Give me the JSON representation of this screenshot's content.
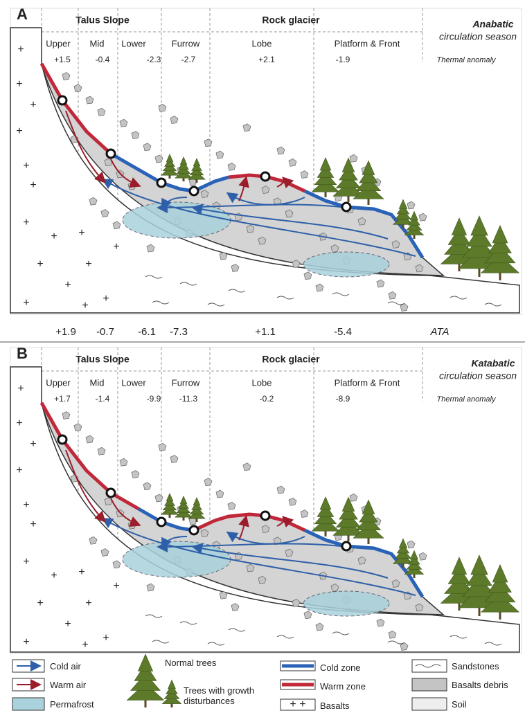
{
  "panels": [
    {
      "label": "A",
      "groups": [
        "Talus Slope",
        "Rock glacier"
      ],
      "zones": [
        "Upper",
        "Mid",
        "Lower",
        "Furrow",
        "Lobe",
        "Platform & Front"
      ],
      "season": "Anabatic",
      "season_rest": "circulation season",
      "anomaly_title": "Thermal anomaly",
      "anomalies": [
        "+1.5",
        "-0.4",
        "-2.3",
        "-2.7",
        "+2.1",
        "-1.9"
      ]
    },
    {
      "label": "B",
      "groups": [
        "Talus Slope",
        "Rock glacier"
      ],
      "zones": [
        "Upper",
        "Mid",
        "Lower",
        "Furrow",
        "Lobe",
        "Platform & Front"
      ],
      "season": "Katabatic",
      "season_rest": "circulation season",
      "anomaly_title": "Thermal anomaly",
      "anomalies": [
        "+1.7",
        "-1.4",
        "-9.9",
        "-11.3",
        "-0.2",
        "-8.9"
      ]
    }
  ],
  "ata": {
    "values": [
      "+1.9",
      "-0.7",
      "-6.1",
      "-7.3",
      "+1.1",
      "-5.4"
    ],
    "label": "ATA"
  },
  "legend": [
    "Cold air",
    "Warm air",
    "Permafrost",
    "Normal trees",
    "Trees with growth disturbances",
    "Cold zone",
    "Warm zone",
    "Basalts",
    "Sandstones",
    "Basalts debris",
    "Soil"
  ]
}
